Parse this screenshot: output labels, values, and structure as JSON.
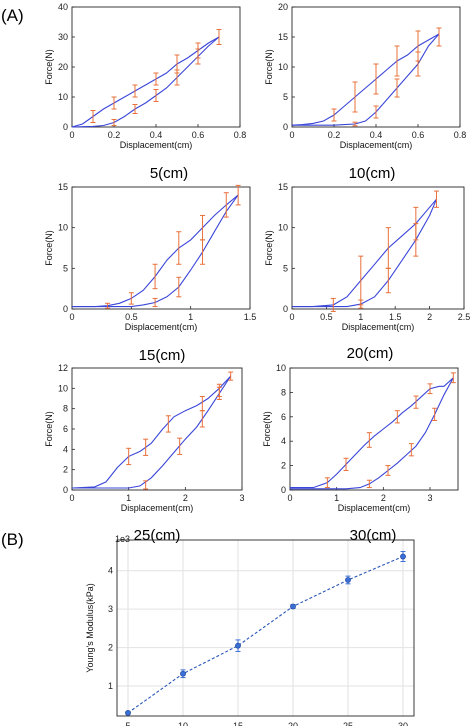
{
  "panel_labels": [
    "(A)",
    "(B)"
  ],
  "chart_data": [
    {
      "type": "line",
      "caption": "5(cm)",
      "xlabel": "Displacement(cm)",
      "ylabel": "Force(N)",
      "xlim": [
        0,
        0.8
      ],
      "ylim": [
        0,
        40
      ],
      "xticks": [
        0,
        0.2,
        0.4,
        0.6,
        0.8
      ],
      "xtick_labels": [
        "0",
        "0.2",
        "0.4",
        "0.6",
        "0.8"
      ],
      "yticks": [
        0,
        10,
        20,
        30,
        40
      ],
      "ytick_labels": [
        "0",
        "10",
        "20",
        "30",
        "40"
      ],
      "series": [
        {
          "x": [
            0,
            0.05,
            0.1,
            0.15,
            0.2,
            0.25,
            0.3,
            0.35,
            0.4,
            0.45,
            0.5,
            0.55,
            0.6,
            0.65,
            0.7
          ],
          "y": [
            0,
            1,
            3.5,
            6,
            8,
            10,
            12,
            14,
            16,
            18,
            21,
            23,
            25.5,
            28,
            30
          ]
        },
        {
          "x": [
            0.7,
            0.65,
            0.6,
            0.55,
            0.5,
            0.45,
            0.4,
            0.35,
            0.3,
            0.25,
            0.2,
            0.15,
            0.1,
            0.05,
            0
          ],
          "y": [
            30,
            27,
            23.5,
            20,
            16.5,
            13,
            10.5,
            8,
            6,
            3.5,
            1.5,
            0.5,
            0.2,
            0.1,
            0
          ]
        }
      ],
      "errorbars": [
        {
          "x": 0.1,
          "y": 3.5,
          "e": 2
        },
        {
          "x": 0.2,
          "y": 8,
          "e": 2
        },
        {
          "x": 0.3,
          "y": 12,
          "e": 2
        },
        {
          "x": 0.4,
          "y": 16,
          "e": 2
        },
        {
          "x": 0.5,
          "y": 21,
          "e": 3
        },
        {
          "x": 0.6,
          "y": 25.5,
          "e": 2.5
        },
        {
          "x": 0.7,
          "y": 30,
          "e": 2.5
        },
        {
          "x": 0.6,
          "y": 23.5,
          "e": 2.5
        },
        {
          "x": 0.5,
          "y": 16.5,
          "e": 2.5
        },
        {
          "x": 0.4,
          "y": 10.5,
          "e": 2
        },
        {
          "x": 0.3,
          "y": 6,
          "e": 1.5
        },
        {
          "x": 0.2,
          "y": 1.5,
          "e": 1
        }
      ]
    },
    {
      "type": "line",
      "caption": "10(cm)",
      "xlabel": "Displacement(cm)",
      "ylabel": "Force(N)",
      "xlim": [
        0,
        0.8
      ],
      "ylim": [
        0,
        20
      ],
      "xticks": [
        0,
        0.2,
        0.4,
        0.6,
        0.8
      ],
      "xtick_labels": [
        "0",
        "0.2",
        "0.4",
        "0.6",
        "0.8"
      ],
      "yticks": [
        0,
        5,
        10,
        15,
        20
      ],
      "ytick_labels": [
        "0",
        "5",
        "10",
        "15",
        "20"
      ],
      "series": [
        {
          "x": [
            0,
            0.05,
            0.1,
            0.15,
            0.2,
            0.25,
            0.3,
            0.35,
            0.4,
            0.45,
            0.5,
            0.55,
            0.6,
            0.65,
            0.7
          ],
          "y": [
            0.3,
            0.4,
            0.6,
            1,
            2,
            3.5,
            5,
            6.5,
            8,
            9.5,
            11,
            12,
            13.5,
            14.5,
            15.5
          ]
        },
        {
          "x": [
            0.7,
            0.65,
            0.6,
            0.55,
            0.5,
            0.45,
            0.4,
            0.35,
            0.3,
            0.25,
            0.2,
            0.15,
            0.1,
            0.05,
            0
          ],
          "y": [
            15.5,
            13.5,
            10.5,
            8.5,
            6.5,
            4.5,
            2.5,
            1,
            0.5,
            0.4,
            0.3,
            0.3,
            0.3,
            0.3,
            0.3
          ]
        }
      ],
      "errorbars": [
        {
          "x": 0.2,
          "y": 2,
          "e": 1
        },
        {
          "x": 0.3,
          "y": 5,
          "e": 2.5
        },
        {
          "x": 0.4,
          "y": 8,
          "e": 2.5
        },
        {
          "x": 0.5,
          "y": 11,
          "e": 2.5
        },
        {
          "x": 0.6,
          "y": 13.5,
          "e": 2.5
        },
        {
          "x": 0.7,
          "y": 15,
          "e": 1.5
        },
        {
          "x": 0.6,
          "y": 10.5,
          "e": 2
        },
        {
          "x": 0.5,
          "y": 6.5,
          "e": 1.5
        },
        {
          "x": 0.4,
          "y": 2.5,
          "e": 1
        },
        {
          "x": 0.3,
          "y": 0.5,
          "e": 0.3
        }
      ]
    },
    {
      "type": "line",
      "caption": "15(cm)",
      "xlabel": "Displacement(cm)",
      "ylabel": "Force(N)",
      "xlim": [
        0,
        1.5
      ],
      "ylim": [
        0,
        15
      ],
      "xticks": [
        0,
        0.5,
        1,
        1.5
      ],
      "xtick_labels": [
        "0",
        "0.5",
        "1",
        "1.5"
      ],
      "yticks": [
        0,
        5,
        10,
        15
      ],
      "ytick_labels": [
        "0",
        "5",
        "10",
        "15"
      ],
      "series": [
        {
          "x": [
            0,
            0.2,
            0.3,
            0.4,
            0.5,
            0.6,
            0.7,
            0.8,
            0.9,
            1.0,
            1.1,
            1.2,
            1.3,
            1.4
          ],
          "y": [
            0.3,
            0.3,
            0.4,
            0.7,
            1.3,
            2.3,
            4,
            6,
            7.5,
            8.5,
            10,
            11.5,
            12.8,
            14
          ]
        },
        {
          "x": [
            1.4,
            1.3,
            1.2,
            1.1,
            1.0,
            0.9,
            0.8,
            0.7,
            0.6,
            0.5,
            0.4,
            0.2,
            0
          ],
          "y": [
            14,
            12,
            9.5,
            7,
            4.8,
            2.7,
            1.5,
            0.8,
            0.5,
            0.3,
            0.3,
            0.3,
            0.3
          ]
        }
      ],
      "errorbars": [
        {
          "x": 0.3,
          "y": 0.4,
          "e": 0.3
        },
        {
          "x": 0.5,
          "y": 1.3,
          "e": 0.7
        },
        {
          "x": 0.7,
          "y": 4,
          "e": 1.5
        },
        {
          "x": 0.9,
          "y": 7.5,
          "e": 2
        },
        {
          "x": 1.1,
          "y": 10,
          "e": 1.5
        },
        {
          "x": 1.3,
          "y": 12.8,
          "e": 1.5
        },
        {
          "x": 1.4,
          "y": 14,
          "e": 1.2
        },
        {
          "x": 1.1,
          "y": 7,
          "e": 1.5
        },
        {
          "x": 0.9,
          "y": 2.7,
          "e": 1.2
        },
        {
          "x": 0.7,
          "y": 0.8,
          "e": 0.5
        }
      ]
    },
    {
      "type": "line",
      "caption": "20(cm)",
      "xlabel": "Displacement(cm)",
      "ylabel": "Force(N)",
      "xlim": [
        0,
        2.5
      ],
      "ylim": [
        0,
        15
      ],
      "xticks": [
        0,
        0.5,
        1,
        1.5,
        2,
        2.5
      ],
      "xtick_labels": [
        "0",
        "0.5",
        "1",
        "1.5",
        "2",
        "2.5"
      ],
      "yticks": [
        0,
        5,
        10,
        15
      ],
      "ytick_labels": [
        "0",
        "5",
        "10",
        "15"
      ],
      "series": [
        {
          "x": [
            0,
            0.3,
            0.6,
            0.8,
            1.0,
            1.2,
            1.4,
            1.6,
            1.8,
            2.0,
            2.1
          ],
          "y": [
            0.3,
            0.3,
            0.5,
            1.5,
            3.5,
            5.5,
            7.5,
            9,
            10.5,
            12.5,
            13.5
          ]
        },
        {
          "x": [
            2.1,
            2.0,
            1.8,
            1.6,
            1.4,
            1.2,
            1.0,
            0.8,
            0.6,
            0.3,
            0
          ],
          "y": [
            13.5,
            11.5,
            8.5,
            6,
            3.5,
            1.5,
            0.6,
            0.3,
            0.3,
            0.3,
            0.3
          ]
        }
      ],
      "errorbars": [
        {
          "x": 0.6,
          "y": 0.5,
          "e": 0.8
        },
        {
          "x": 1.0,
          "y": 3.5,
          "e": 3
        },
        {
          "x": 1.4,
          "y": 7.5,
          "e": 2.5
        },
        {
          "x": 1.8,
          "y": 10.5,
          "e": 2
        },
        {
          "x": 2.1,
          "y": 13.5,
          "e": 1
        },
        {
          "x": 1.8,
          "y": 8.5,
          "e": 2
        },
        {
          "x": 1.4,
          "y": 3.5,
          "e": 1.5
        },
        {
          "x": 1.0,
          "y": 0.6,
          "e": 0.5
        }
      ]
    },
    {
      "type": "line",
      "caption": "25(cm)",
      "xlabel": "Displacement(cm)",
      "ylabel": "Force(N)",
      "xlim": [
        0,
        3
      ],
      "ylim": [
        0,
        12
      ],
      "xticks": [
        0,
        1,
        2,
        3
      ],
      "xtick_labels": [
        "0",
        "1",
        "2",
        "3"
      ],
      "yticks": [
        0,
        2,
        4,
        6,
        8,
        10,
        12
      ],
      "ytick_labels": [
        "0",
        "2",
        "4",
        "6",
        "8",
        "10",
        "12"
      ],
      "series": [
        {
          "x": [
            0,
            0.4,
            0.6,
            0.8,
            1.0,
            1.2,
            1.4,
            1.6,
            1.8,
            2.0,
            2.2,
            2.4,
            2.6,
            2.8
          ],
          "y": [
            0.2,
            0.3,
            0.8,
            2.2,
            3.3,
            3.8,
            4.6,
            6,
            7.2,
            7.8,
            8.3,
            9,
            10,
            11.2
          ]
        },
        {
          "x": [
            2.8,
            2.6,
            2.4,
            2.2,
            2.0,
            1.8,
            1.6,
            1.4,
            1.2,
            1.0,
            0.6,
            0
          ],
          "y": [
            11.2,
            9.5,
            7.8,
            6.2,
            5,
            3.7,
            2.4,
            1.2,
            0.4,
            0.2,
            0.2,
            0.2
          ]
        }
      ],
      "errorbars": [
        {
          "x": 1.0,
          "y": 3.3,
          "e": 0.8
        },
        {
          "x": 1.3,
          "y": 4.2,
          "e": 0.8
        },
        {
          "x": 1.7,
          "y": 6.5,
          "e": 0.8
        },
        {
          "x": 2.3,
          "y": 8.5,
          "e": 0.7
        },
        {
          "x": 2.6,
          "y": 9.8,
          "e": 0.6
        },
        {
          "x": 2.8,
          "y": 11.2,
          "e": 0.4
        },
        {
          "x": 2.6,
          "y": 9.5,
          "e": 0.6
        },
        {
          "x": 2.3,
          "y": 7,
          "e": 0.8
        },
        {
          "x": 1.9,
          "y": 4.3,
          "e": 0.8
        },
        {
          "x": 1.3,
          "y": 0.5,
          "e": 0.4
        }
      ]
    },
    {
      "type": "line",
      "caption": "30(cm)",
      "xlabel": "Displacement(cm)",
      "ylabel": "Force(N)",
      "xlim": [
        0,
        3.6
      ],
      "ylim": [
        0,
        10
      ],
      "xticks": [
        0,
        1,
        2,
        3
      ],
      "xtick_labels": [
        "0",
        "1",
        "2",
        "3"
      ],
      "yticks": [
        0,
        2,
        4,
        6,
        8,
        10
      ],
      "ytick_labels": [
        "0",
        "2",
        "4",
        "6",
        "8",
        "10"
      ],
      "series": [
        {
          "x": [
            0,
            0.5,
            0.8,
            1.0,
            1.2,
            1.4,
            1.6,
            1.8,
            2.0,
            2.2,
            2.4,
            2.6,
            2.8,
            3.0,
            3.2,
            3.3,
            3.5
          ],
          "y": [
            0.2,
            0.2,
            0.6,
            1.3,
            2.1,
            2.9,
            3.7,
            4.4,
            5,
            5.6,
            6.3,
            6.9,
            7.6,
            8.3,
            8.5,
            8.5,
            9.2
          ]
        },
        {
          "x": [
            3.5,
            3.3,
            3.1,
            2.9,
            2.7,
            2.5,
            2.3,
            2.1,
            1.9,
            1.7,
            1.5,
            1.2,
            0.8,
            0
          ],
          "y": [
            9.2,
            7.8,
            6.2,
            4.7,
            3.6,
            2.9,
            2.2,
            1.6,
            1,
            0.5,
            0.2,
            0.1,
            0.1,
            0.1
          ]
        }
      ],
      "errorbars": [
        {
          "x": 0.8,
          "y": 0.6,
          "e": 0.4
        },
        {
          "x": 1.2,
          "y": 2.1,
          "e": 0.5
        },
        {
          "x": 1.7,
          "y": 4.1,
          "e": 0.6
        },
        {
          "x": 2.3,
          "y": 6,
          "e": 0.5
        },
        {
          "x": 2.7,
          "y": 7.2,
          "e": 0.5
        },
        {
          "x": 3.0,
          "y": 8.3,
          "e": 0.4
        },
        {
          "x": 3.5,
          "y": 9.2,
          "e": 0.4
        },
        {
          "x": 3.1,
          "y": 6.2,
          "e": 0.5
        },
        {
          "x": 2.6,
          "y": 3.3,
          "e": 0.5
        },
        {
          "x": 2.1,
          "y": 1.6,
          "e": 0.4
        },
        {
          "x": 1.7,
          "y": 0.5,
          "e": 0.3
        }
      ]
    },
    {
      "type": "line",
      "caption": "",
      "xlabel": "Length(cm)",
      "ylabel": "Young's Modulus(kPa)",
      "exponent_label": "1e3",
      "xlim": [
        4,
        31
      ],
      "ylim": [
        0.22,
        4.8
      ],
      "xticks": [
        5,
        10,
        15,
        20,
        25,
        30
      ],
      "xtick_labels": [
        "5",
        "10",
        "15",
        "20",
        "25",
        "30"
      ],
      "yticks": [
        1,
        2,
        3,
        4
      ],
      "ytick_labels": [
        "1",
        "2",
        "3",
        "4"
      ],
      "grid": true,
      "series": [
        {
          "x": [
            5,
            10,
            15,
            20,
            25,
            30
          ],
          "y": [
            0.3,
            1.32,
            2.05,
            3.07,
            3.76,
            4.37
          ]
        }
      ],
      "errorbars": [
        {
          "x": 5,
          "y": 0.3,
          "e": 0.03
        },
        {
          "x": 10,
          "y": 1.32,
          "e": 0.1
        },
        {
          "x": 15,
          "y": 2.05,
          "e": 0.15
        },
        {
          "x": 20,
          "y": 3.07,
          "e": 0.05
        },
        {
          "x": 25,
          "y": 3.76,
          "e": 0.1
        },
        {
          "x": 30,
          "y": 4.37,
          "e": 0.13
        }
      ]
    }
  ],
  "colors": {
    "line": "#3a46d8",
    "errorbar": "#e8703a",
    "modulus_line": "#2a56b8",
    "modulus_marker": "#3a6fd6",
    "grid": "#e2e2e2"
  }
}
